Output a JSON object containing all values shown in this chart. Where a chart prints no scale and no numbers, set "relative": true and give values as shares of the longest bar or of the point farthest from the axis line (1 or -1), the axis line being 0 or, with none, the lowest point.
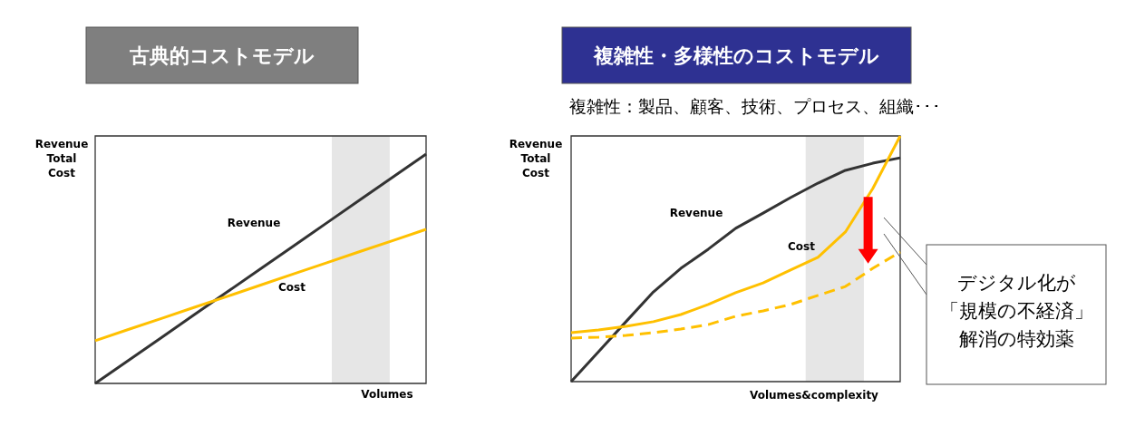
{
  "chart_data": [
    {
      "type": "line",
      "title": "古典的コストモデル",
      "xlabel": "Volumes",
      "ylabel": "Revenue\nTotal\nCost",
      "relative": true,
      "categories": [
        null,
        null,
        null,
        null,
        null,
        null,
        null,
        null,
        null,
        null,
        null
      ],
      "series": [
        {
          "name": "Revenue",
          "color": "#333333",
          "values": [
            0,
            0.1,
            0.2,
            0.3,
            0.4,
            0.5,
            0.6,
            0.7,
            0.8,
            0.9,
            1
          ]
        },
        {
          "name": "Cost",
          "color": "#ffc000",
          "values": [
            0.186,
            0.235,
            0.283,
            0.332,
            0.38,
            0.429,
            0.478,
            0.526,
            0.575,
            0.623,
            0.672
          ]
        }
      ]
    },
    {
      "type": "line",
      "title": "複雑性・多様性のコストモデル",
      "subtitle": "複雑性：製品、顧客、技術、プロセス、組織･･･",
      "xlabel": "Volumes&complexity",
      "ylabel": "Revenue\nTotal\nCost",
      "relative": true,
      "categories": [
        null,
        null,
        null,
        null,
        null,
        null,
        null,
        null,
        null,
        null,
        null,
        null,
        null
      ],
      "series": [
        {
          "name": "Revenue",
          "color": "#333333",
          "values": [
            0,
            0.122,
            0.244,
            0.365,
            0.461,
            0.539,
            0.624,
            0.686,
            0.749,
            0.808,
            0.86,
            0.889,
            0.911
          ]
        },
        {
          "name": "Cost",
          "color": "#ffc000",
          "values": [
            0.199,
            0.21,
            0.225,
            0.244,
            0.273,
            0.314,
            0.362,
            0.402,
            0.454,
            0.506,
            0.609,
            0.786,
            1
          ]
        },
        {
          "color": "#ffc000",
          "line_style": "dashed",
          "values": [
            0.177,
            0.181,
            0.188,
            0.199,
            0.214,
            0.232,
            0.266,
            0.288,
            0.314,
            0.351,
            0.387,
            0.461,
            0.528
          ]
        }
      ],
      "annotations": [
        "デジタル化が「規模の不経済」解消の特効薬"
      ]
    }
  ]
}
